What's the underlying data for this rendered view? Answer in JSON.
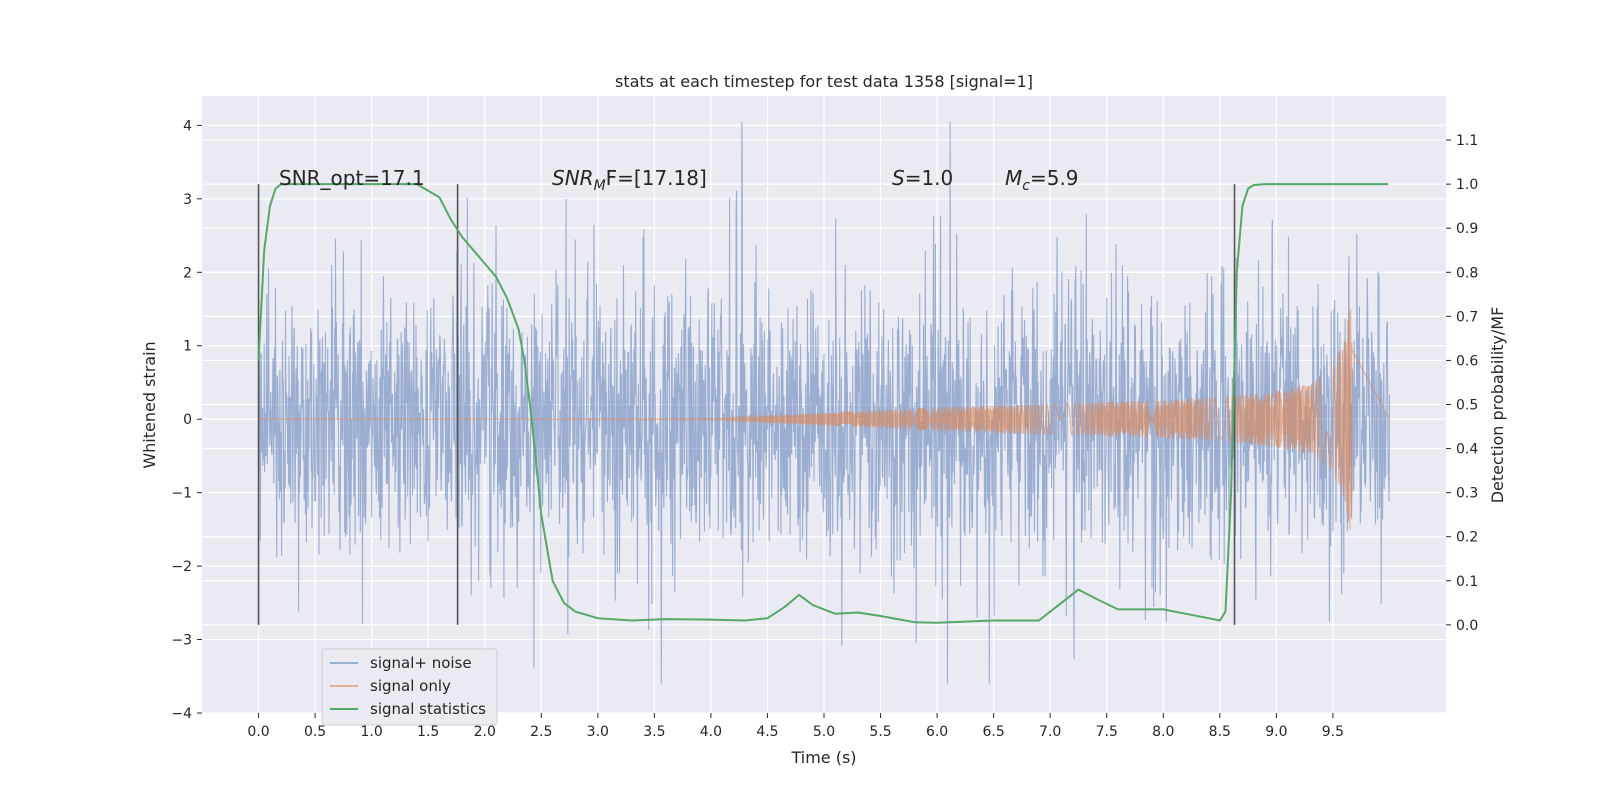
{
  "chart_data": {
    "type": "line",
    "title": "stats at each timestep for test data 1358 [signal=1]",
    "xlabel": "Time (s)",
    "ylabel_left": "Whitened strain",
    "ylabel_right": "Detection probability/MF",
    "xlim": [
      -0.5,
      10.5
    ],
    "ylim_left": [
      -4,
      4.4
    ],
    "ylim_right": [
      -0.2,
      1.2
    ],
    "x_ticks": [
      "0.0",
      "0.5",
      "1.0",
      "1.5",
      "2.0",
      "2.5",
      "3.0",
      "3.5",
      "4.0",
      "4.5",
      "5.0",
      "5.5",
      "6.0",
      "6.5",
      "7.0",
      "7.5",
      "8.0",
      "8.5",
      "9.0",
      "9.5"
    ],
    "y_ticks_left": [
      "4",
      "3",
      "2",
      "1",
      "0",
      "−1",
      "−2",
      "−3",
      "−4"
    ],
    "y_ticks_right": [
      "1.1",
      "1.0",
      "0.9",
      "0.8",
      "0.7",
      "0.6",
      "0.5",
      "0.4",
      "0.3",
      "0.2",
      "0.1",
      "0.0"
    ],
    "grid": true,
    "legend_location": "lower-left",
    "annotations": {
      "snr_opt": "SNR_opt=17.1",
      "snr_mf_main": "SNR",
      "snr_mf_sub": "M",
      "snr_mf_rest": "F=[17.18]",
      "s_main": "S",
      "s_rest": "=1.0",
      "mc_main": "M",
      "mc_sub": "c",
      "mc_rest": "=5.9"
    },
    "vertical_markers_x": [
      0.0,
      1.76,
      8.63
    ],
    "vertical_markers_range": [
      -2.8,
      3.2
    ],
    "series": [
      {
        "name": "signal+ noise",
        "axis": "left",
        "color": "#4c72b0",
        "description_range": {
          "t_start": 0.0,
          "t_end": 10.0,
          "typical_envelope": [
            -2.6,
            2.6
          ],
          "max": 4.05,
          "min": -3.6
        }
      },
      {
        "name": "signal only",
        "axis": "left",
        "color": "#dd8452",
        "envelope": {
          "t": [
            0.0,
            4.0,
            5.0,
            6.0,
            7.0,
            8.0,
            8.5,
            9.0,
            9.3,
            9.5,
            9.6,
            9.65,
            9.67
          ],
          "amp": [
            0.0,
            0.01,
            0.09,
            0.16,
            0.21,
            0.26,
            0.3,
            0.38,
            0.48,
            0.72,
            1.1,
            1.5,
            1.6
          ]
        }
      },
      {
        "name": "signal statistics",
        "axis": "right",
        "color": "#55a868",
        "x": [
          0.0,
          0.05,
          0.1,
          0.15,
          0.2,
          0.3,
          0.5,
          1.0,
          1.4,
          1.6,
          1.7,
          1.8,
          1.9,
          2.0,
          2.1,
          2.2,
          2.3,
          2.35,
          2.4,
          2.45,
          2.5,
          2.6,
          2.7,
          2.8,
          3.0,
          3.3,
          3.6,
          4.0,
          4.3,
          4.5,
          4.65,
          4.78,
          4.9,
          5.1,
          5.3,
          5.5,
          5.8,
          6.0,
          6.5,
          6.9,
          7.1,
          7.25,
          7.4,
          7.6,
          8.0,
          8.2,
          8.4,
          8.5,
          8.55,
          8.6,
          8.65,
          8.7,
          8.75,
          8.8,
          8.9,
          9.0,
          9.5,
          9.99
        ],
        "y": [
          0.6,
          0.85,
          0.95,
          0.99,
          1.0,
          1.0,
          1.0,
          1.0,
          1.0,
          0.97,
          0.92,
          0.88,
          0.85,
          0.82,
          0.79,
          0.74,
          0.67,
          0.6,
          0.5,
          0.38,
          0.25,
          0.1,
          0.05,
          0.03,
          0.015,
          0.01,
          0.013,
          0.012,
          0.01,
          0.015,
          0.04,
          0.068,
          0.045,
          0.025,
          0.028,
          0.02,
          0.006,
          0.005,
          0.01,
          0.01,
          0.05,
          0.08,
          0.06,
          0.035,
          0.035,
          0.025,
          0.015,
          0.01,
          0.03,
          0.3,
          0.8,
          0.95,
          0.99,
          0.998,
          1.0,
          1.0,
          1.0,
          1.0
        ]
      }
    ]
  }
}
